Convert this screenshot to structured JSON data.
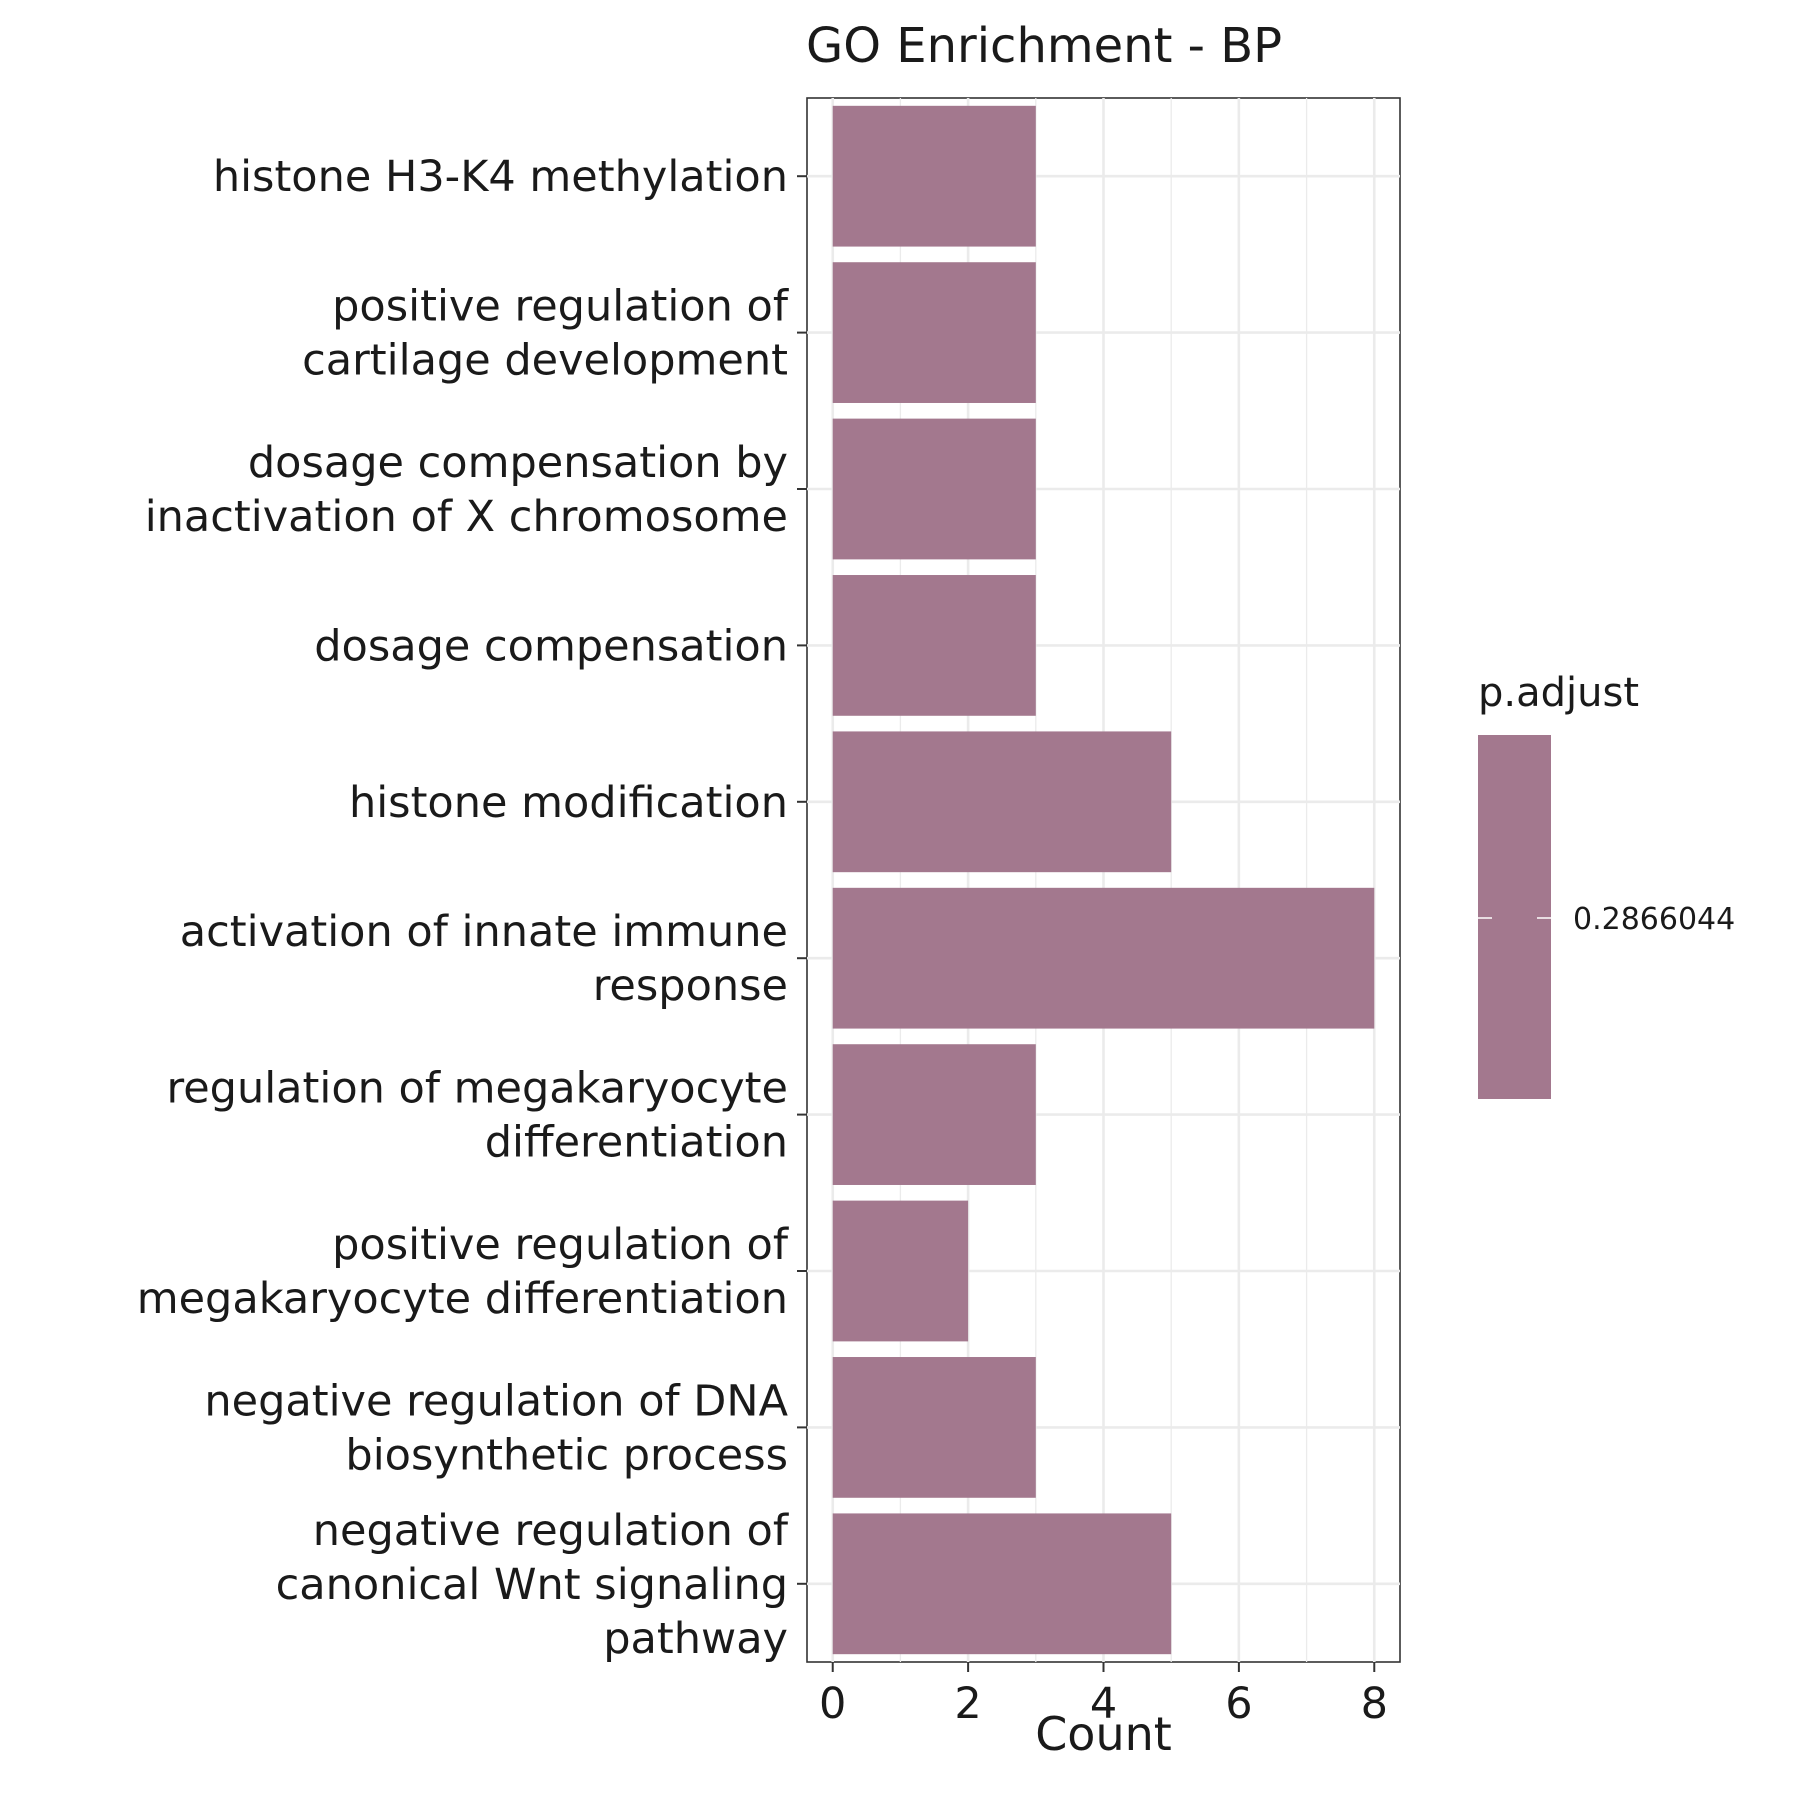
{
  "chart_data": {
    "type": "bar",
    "orientation": "horizontal",
    "title": "GO Enrichment - BP",
    "xlabel": "Count",
    "ylabel": "",
    "xlim": [
      -0.38,
      8.38
    ],
    "x_ticks": [
      0,
      2,
      4,
      6,
      8
    ],
    "grid": true,
    "bar_color": "#a3788e",
    "categories": [
      {
        "label": [
          "histone H3-K4 methylation"
        ],
        "value": 3
      },
      {
        "label": [
          "positive regulation of",
          "cartilage development"
        ],
        "value": 3
      },
      {
        "label": [
          "dosage compensation by",
          "inactivation of X chromosome"
        ],
        "value": 3
      },
      {
        "label": [
          "dosage compensation"
        ],
        "value": 3
      },
      {
        "label": [
          "histone modification"
        ],
        "value": 5
      },
      {
        "label": [
          "activation of innate immune",
          "response"
        ],
        "value": 8
      },
      {
        "label": [
          "regulation of megakaryocyte",
          "differentiation"
        ],
        "value": 3
      },
      {
        "label": [
          "positive regulation of",
          "megakaryocyte differentiation"
        ],
        "value": 2
      },
      {
        "label": [
          "negative regulation of DNA",
          "biosynthetic process"
        ],
        "value": 3
      },
      {
        "label": [
          "negative regulation of",
          "canonical Wnt signaling",
          "pathway"
        ],
        "value": 5
      }
    ],
    "legend": {
      "title": "p.adjust",
      "placement": "right",
      "value_label": "0.2866044",
      "color": "#a3788e"
    }
  }
}
